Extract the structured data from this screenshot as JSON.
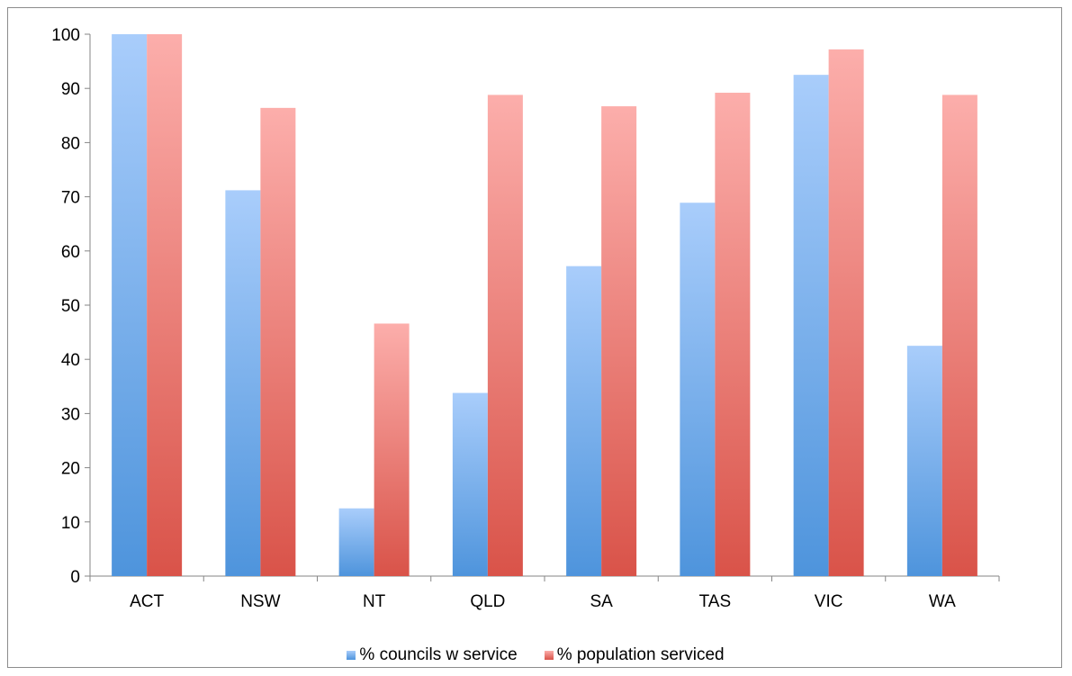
{
  "chart_data": {
    "type": "bar",
    "categories": [
      "ACT",
      "NSW",
      "NT",
      "QLD",
      "SA",
      "TAS",
      "VIC",
      "WA"
    ],
    "series": [
      {
        "name": "% councils w service",
        "values": [
          100,
          71.2,
          12.5,
          33.8,
          57.2,
          68.9,
          92.5,
          42.5
        ],
        "color_top": "#a9cdfb",
        "color_bottom": "#4e94dc"
      },
      {
        "name": "% population serviced",
        "values": [
          100,
          86.4,
          46.6,
          88.8,
          86.7,
          89.2,
          97.2,
          88.8
        ],
        "color_top": "#fcaeab",
        "color_bottom": "#d95349"
      }
    ],
    "ylim": [
      0,
      100
    ],
    "yticks": [
      "0",
      "10",
      "20",
      "30",
      "40",
      "50",
      "60",
      "70",
      "80",
      "90",
      "100"
    ],
    "grid": false,
    "legend_position": "bottom",
    "title": "",
    "xlabel": "",
    "ylabel": ""
  }
}
